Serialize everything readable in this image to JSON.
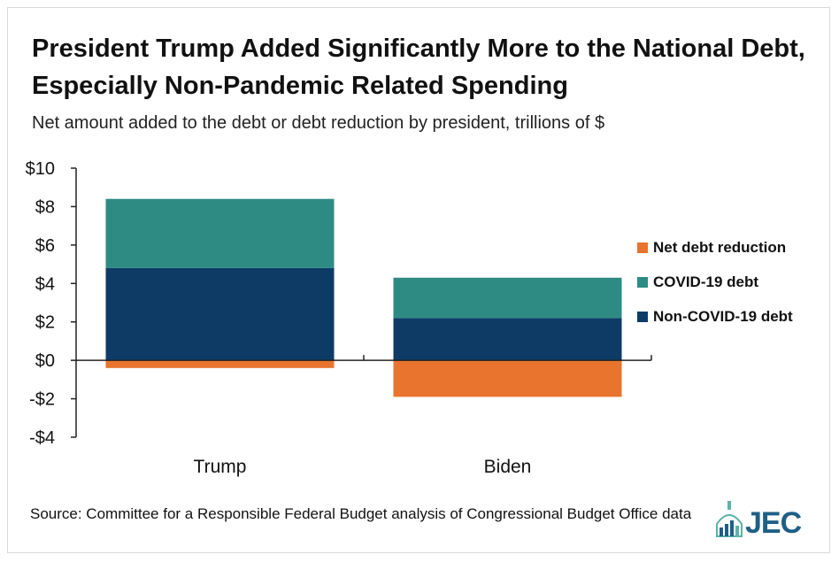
{
  "title": "President Trump Added Significantly More to the National Debt, Especially Non-Pandemic Related Spending",
  "subtitle": "Net amount added to the debt or debt reduction by president, trillions of $",
  "source": "Source: Committee for a Responsible Federal Budget analysis of Congressional Budget Office data",
  "logo": {
    "text": "JEC",
    "color": "#1f5f86",
    "accent": "#5bb3a8"
  },
  "chart_data": {
    "type": "bar",
    "stacked": true,
    "title": "President Trump Added Significantly More to the National Debt, Especially Non-Pandemic Related Spending",
    "ylabel": "Net amount added to the debt or debt reduction by president, trillions of $",
    "xlabel": "",
    "categories": [
      "Trump",
      "Biden"
    ],
    "ylim": [
      -4,
      10
    ],
    "yticks": [
      10,
      8,
      6,
      4,
      2,
      0,
      -2,
      -4
    ],
    "ytick_labels": [
      "$10",
      "$8",
      "$6",
      "$4",
      "$2",
      "$0",
      "-$2",
      "-$4"
    ],
    "series": [
      {
        "name": "Non-COVID-19 debt",
        "color": "#0d3b66",
        "values": [
          4.8,
          2.2
        ]
      },
      {
        "name": "COVID-19 debt",
        "color": "#2e8b84",
        "values": [
          3.6,
          2.1
        ]
      },
      {
        "name": "Net debt reduction",
        "color": "#e8742e",
        "values": [
          -0.4,
          -1.9
        ]
      }
    ],
    "legend": {
      "placement": "right",
      "order": [
        "Net debt reduction",
        "COVID-19 debt",
        "Non-COVID-19 debt"
      ]
    },
    "grid": false
  }
}
